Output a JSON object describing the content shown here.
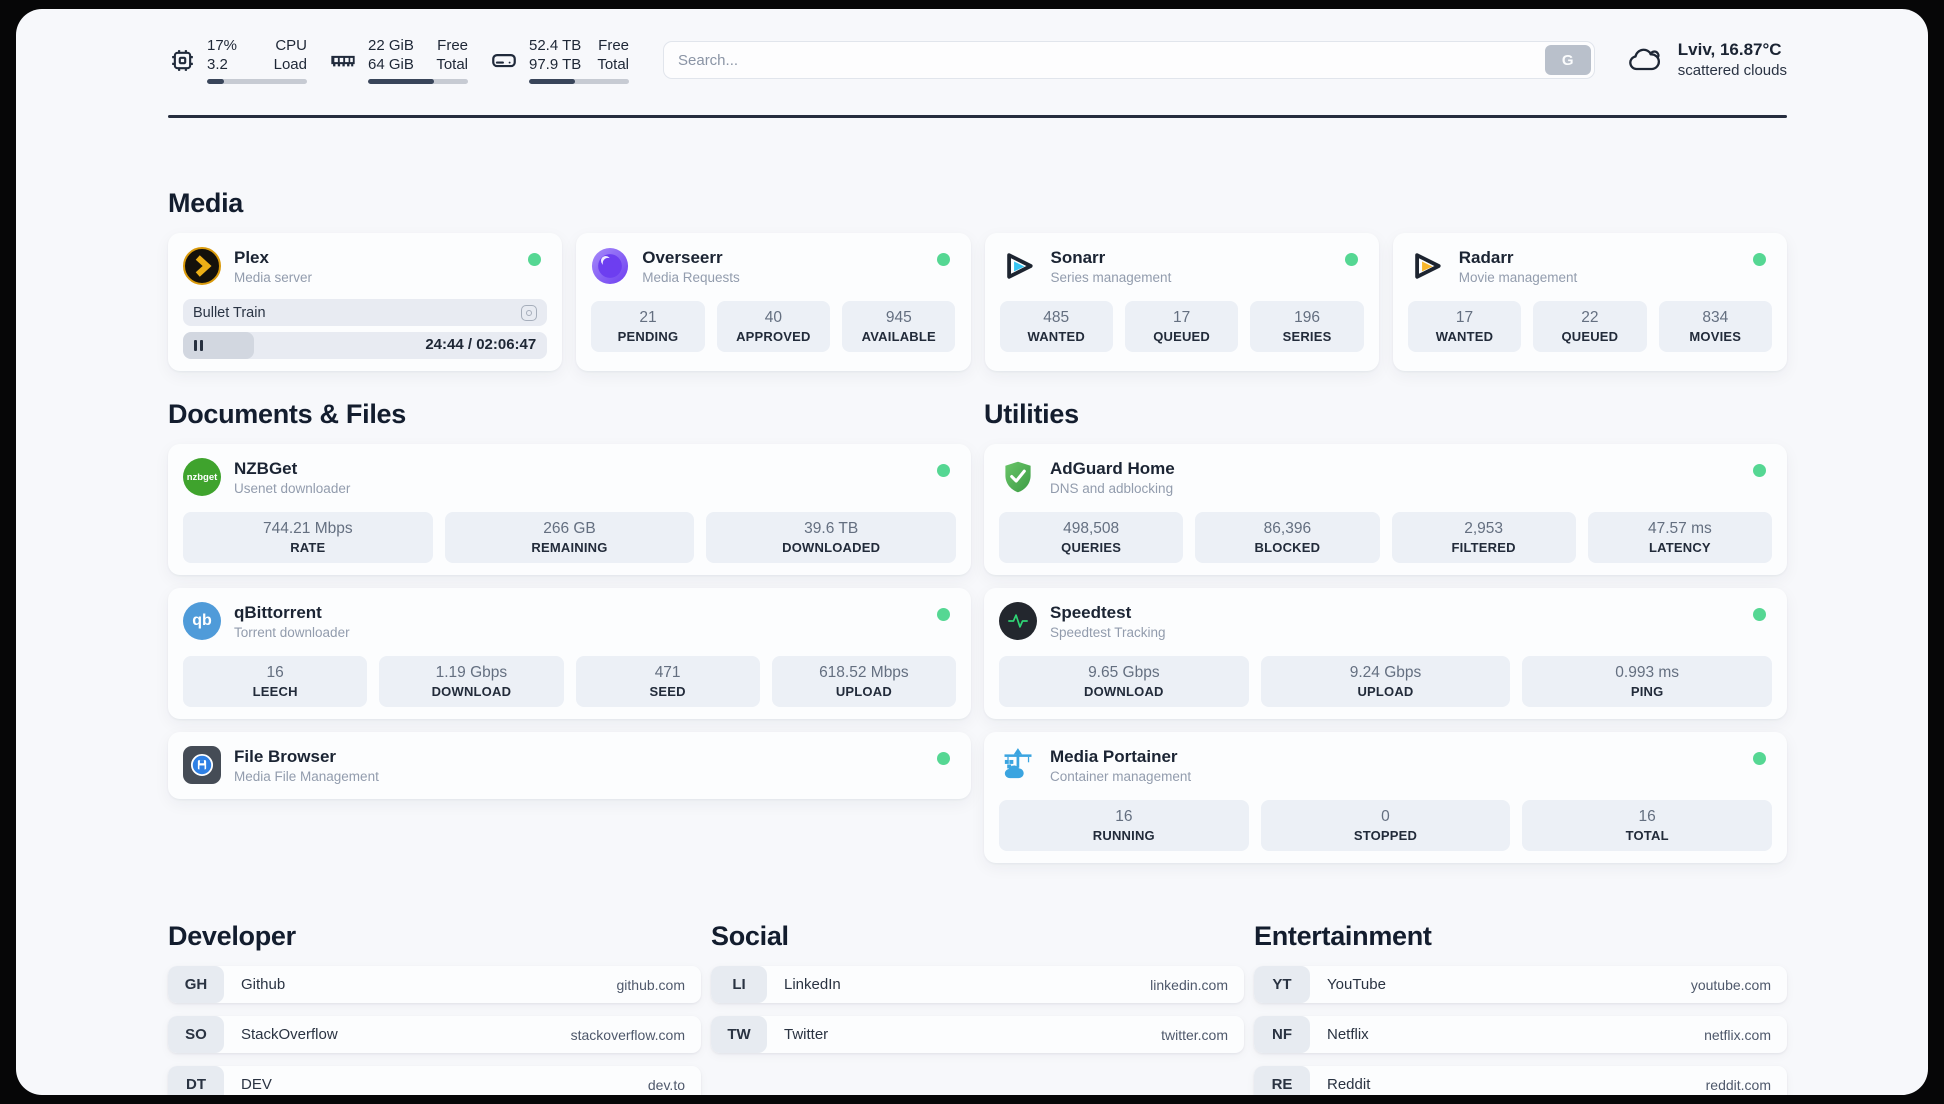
{
  "header": {
    "cpu": {
      "value_line1": "17%",
      "value_line2": "3.2",
      "label_line1": "CPU",
      "label_line2": "Load",
      "progress_pct": 17
    },
    "memory": {
      "value_line1": "22 GiB",
      "value_line2": "64 GiB",
      "label_line1": "Free",
      "label_line2": "Total",
      "progress_pct": 66
    },
    "disk": {
      "value_line1": "52.4 TB",
      "value_line2": "97.9 TB",
      "label_line1": "Free",
      "label_line2": "Total",
      "progress_pct": 46
    },
    "search": {
      "placeholder": "Search...",
      "button_label": "G"
    },
    "weather": {
      "location": "Lviv, 16.87°C",
      "condition": "scattered clouds"
    }
  },
  "colors": {
    "status_online": "#55d793",
    "progress_fill": "#39455a"
  },
  "sections": {
    "media": {
      "title": "Media",
      "plex": {
        "name": "Plex",
        "description": "Media server",
        "now_playing": {
          "title": "Bullet Train",
          "time_display": "24:44 / 02:06:47",
          "progress_pct": 19.5,
          "state": "paused"
        }
      },
      "overseerr": {
        "name": "Overseerr",
        "description": "Media Requests",
        "stats": [
          {
            "value": "21",
            "label": "PENDING"
          },
          {
            "value": "40",
            "label": "APPROVED"
          },
          {
            "value": "945",
            "label": "AVAILABLE"
          }
        ]
      },
      "sonarr": {
        "name": "Sonarr",
        "description": "Series management",
        "stats": [
          {
            "value": "485",
            "label": "WANTED"
          },
          {
            "value": "17",
            "label": "QUEUED"
          },
          {
            "value": "196",
            "label": "SERIES"
          }
        ]
      },
      "radarr": {
        "name": "Radarr",
        "description": "Movie management",
        "stats": [
          {
            "value": "17",
            "label": "WANTED"
          },
          {
            "value": "22",
            "label": "QUEUED"
          },
          {
            "value": "834",
            "label": "MOVIES"
          }
        ]
      }
    },
    "documents": {
      "title": "Documents & Files",
      "nzbget": {
        "name": "NZBGet",
        "description": "Usenet downloader",
        "stats": [
          {
            "value": "744.21 Mbps",
            "label": "RATE"
          },
          {
            "value": "266 GB",
            "label": "REMAINING"
          },
          {
            "value": "39.6 TB",
            "label": "DOWNLOADED"
          }
        ]
      },
      "qbittorrent": {
        "name": "qBittorrent",
        "description": "Torrent downloader",
        "stats": [
          {
            "value": "16",
            "label": "LEECH"
          },
          {
            "value": "1.19 Gbps",
            "label": "DOWNLOAD"
          },
          {
            "value": "471",
            "label": "SEED"
          },
          {
            "value": "618.52 Mbps",
            "label": "UPLOAD"
          }
        ]
      },
      "filebrowser": {
        "name": "File Browser",
        "description": "Media File Management"
      }
    },
    "utilities": {
      "title": "Utilities",
      "adguard": {
        "name": "AdGuard Home",
        "description": "DNS and adblocking",
        "stats": [
          {
            "value": "498,508",
            "label": "QUERIES"
          },
          {
            "value": "86,396",
            "label": "BLOCKED"
          },
          {
            "value": "2,953",
            "label": "FILTERED"
          },
          {
            "value": "47.57 ms",
            "label": "LATENCY"
          }
        ]
      },
      "speedtest": {
        "name": "Speedtest",
        "description": "Speedtest Tracking",
        "stats": [
          {
            "value": "9.65 Gbps",
            "label": "DOWNLOAD"
          },
          {
            "value": "9.24 Gbps",
            "label": "UPLOAD"
          },
          {
            "value": "0.993 ms",
            "label": "PING"
          }
        ]
      },
      "portainer": {
        "name": "Media Portainer",
        "description": "Container management",
        "stats": [
          {
            "value": "16",
            "label": "RUNNING"
          },
          {
            "value": "0",
            "label": "STOPPED"
          },
          {
            "value": "16",
            "label": "TOTAL"
          }
        ]
      }
    },
    "developer": {
      "title": "Developer",
      "links": [
        {
          "badge": "GH",
          "name": "Github",
          "url": "github.com"
        },
        {
          "badge": "SO",
          "name": "StackOverflow",
          "url": "stackoverflow.com"
        },
        {
          "badge": "DT",
          "name": "DEV",
          "url": "dev.to"
        }
      ]
    },
    "social": {
      "title": "Social",
      "links": [
        {
          "badge": "LI",
          "name": "LinkedIn",
          "url": "linkedin.com"
        },
        {
          "badge": "TW",
          "name": "Twitter",
          "url": "twitter.com"
        }
      ]
    },
    "entertainment": {
      "title": "Entertainment",
      "links": [
        {
          "badge": "YT",
          "name": "YouTube",
          "url": "youtube.com"
        },
        {
          "badge": "NF",
          "name": "Netflix",
          "url": "netflix.com"
        },
        {
          "badge": "RE",
          "name": "Reddit",
          "url": "reddit.com"
        }
      ]
    }
  }
}
